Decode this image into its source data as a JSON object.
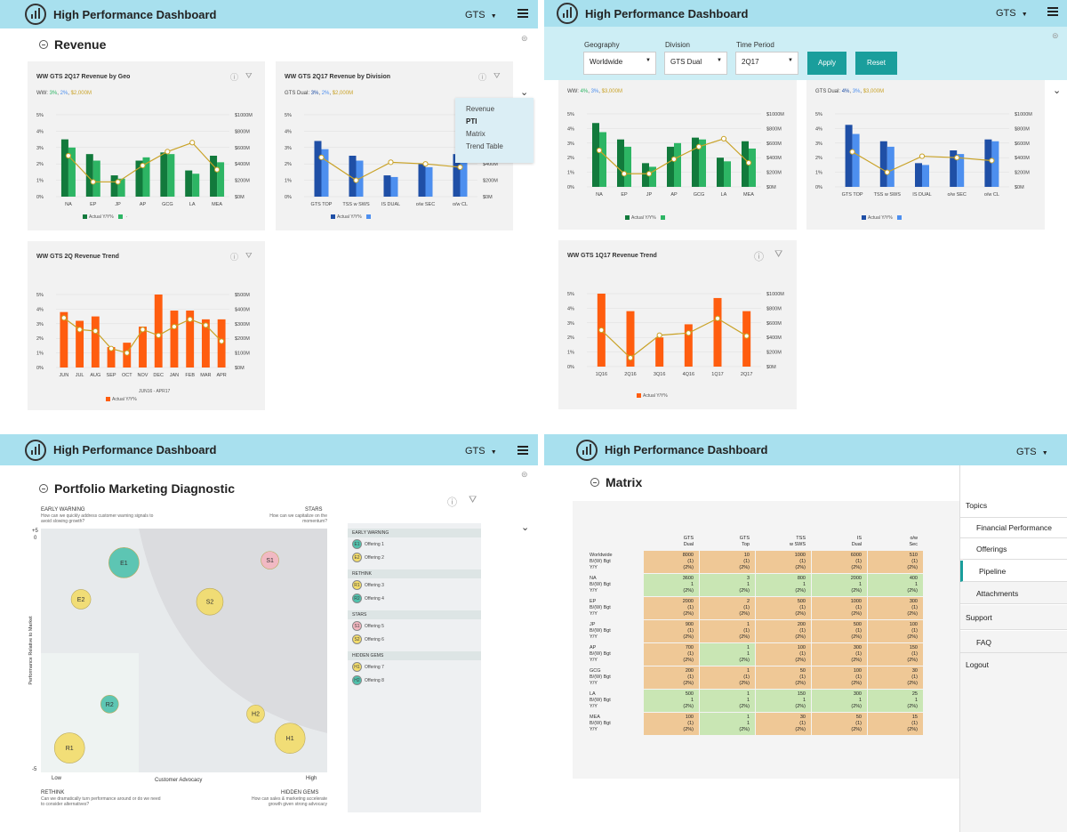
{
  "app": {
    "title": "High Performance Dashboard",
    "org": "GTS"
  },
  "colors": {
    "topbar": "#a8e0ee",
    "green_dark": "#127a3c",
    "green": "#2db564",
    "blue_dark": "#1f4fa6",
    "blue": "#4d8fef",
    "orange": "#ff5d0f",
    "gold_line": "#c9a227",
    "teal_btn": "#1a9e9c"
  },
  "q1": {
    "section": "Revenue",
    "card_geo": {
      "title": "WW GTS 2Q17 Revenue by Geo",
      "sub_prefix": "WW:",
      "sub_a": "3%",
      "sub_b": "2%",
      "sub_c": "$2,000M",
      "legend_actual": "Actual Y/Y%"
    },
    "card_div": {
      "title": "WW GTS 2Q17 Revenue by Division",
      "sub_prefix": "GTS Dual:",
      "sub_a": "3%",
      "sub_b": "2%",
      "sub_c": "$2,000M",
      "legend_actual": "Actual Y/Y%"
    },
    "card_trend": {
      "title": "WW GTS 2Q Revenue Trend",
      "legend_actual": "Actual Y/Y%",
      "note": "JUN16 - APR17"
    },
    "menu": [
      "Revenue",
      "PTI",
      "Matrix",
      "Trend Table"
    ]
  },
  "q2": {
    "filters": {
      "geo_label": "Geography",
      "geo_value": "Worldwide",
      "div_label": "Division",
      "div_value": "GTS Dual",
      "time_label": "Time Period",
      "time_value": "2Q17",
      "apply": "Apply",
      "reset": "Reset"
    },
    "sub_geo": {
      "prefix": "WW:",
      "a": "4%",
      "b": "3%",
      "c": "$3,000M"
    },
    "sub_div": {
      "prefix": "GTS Dual:",
      "a": "4%",
      "b": "3%",
      "c": "$3,000M"
    },
    "card_trend": {
      "title": "WW GTS 1Q17 Revenue Trend",
      "legend_actual": "Actual Y/Y%"
    }
  },
  "q3": {
    "section": "Portfolio Marketing Diagnostic",
    "early_warning": "EARLY WARNING",
    "early_warning_q": "How can we quickly address customer warning signals to avoid slowing growth?",
    "stars": "STARS",
    "stars_q": "How can we capitalize on the momentum?",
    "rethink": "RETHINK",
    "rethink_q": "Can we dramatically turn performance around or do we need to consider alternatives?",
    "hidden_gems": "HIDDEN GEMS",
    "hidden_gems_q": "How can sales & marketing accelerate growth given strong advocacy",
    "y_axis": "Performance Relative to Market",
    "x_axis": "Customer Advocacy",
    "x_low": "Low",
    "x_high": "High",
    "y_top": "+5",
    "y_zero": "0",
    "y_bottom": "-5",
    "list": [
      {
        "group": "EARLY WARNING",
        "items": [
          {
            "code": "E1",
            "name": "Offering 1"
          },
          {
            "code": "E2",
            "name": "Offering 2"
          }
        ]
      },
      {
        "group": "RETHINK",
        "items": [
          {
            "code": "R1",
            "name": "Offering 3"
          },
          {
            "code": "R2",
            "name": "Offering 4"
          }
        ]
      },
      {
        "group": "STARS",
        "items": [
          {
            "code": "S1",
            "name": "Offering 5"
          },
          {
            "code": "S2",
            "name": "Offering 6"
          }
        ]
      },
      {
        "group": "HIDDEN GEMS",
        "items": [
          {
            "code": "H1",
            "name": "Offering 7"
          },
          {
            "code": "H2",
            "name": "Offering 8"
          }
        ]
      }
    ]
  },
  "q4": {
    "section": "Matrix",
    "sidebar": {
      "topics": "Topics",
      "financial": "Financial Performance",
      "offerings": "Offerings",
      "pipeline": "Pipeline",
      "attachments": "Attachments",
      "support": "Support",
      "faq": "FAQ",
      "logout": "Logout"
    },
    "columns": [
      [
        "GTS",
        "Dual"
      ],
      [
        "GTS",
        "Top"
      ],
      [
        "TSS",
        "w SWS"
      ],
      [
        "IS",
        "Dual"
      ],
      [
        "o/w",
        "Sec"
      ]
    ],
    "rows": [
      {
        "label": [
          "Worldwide",
          "B/(W) Bgt",
          "Y/Y"
        ],
        "cells": [
          [
            "8000",
            "(1)",
            "(2%)"
          ],
          [
            "10",
            "(1)",
            "(2%)"
          ],
          [
            "1000",
            "(1)",
            "(2%)"
          ],
          [
            "6000",
            "(1)",
            "(2%)"
          ],
          [
            "510",
            "(1)",
            "(2%)"
          ]
        ],
        "status": [
          "o",
          "o",
          "o",
          "o",
          "o"
        ]
      },
      {
        "label": [
          "NA",
          "B/(W) Bgt",
          "Y/Y"
        ],
        "cells": [
          [
            "3600",
            "1",
            "(2%)"
          ],
          [
            "3",
            "1",
            "(2%)"
          ],
          [
            "800",
            "1",
            "(2%)"
          ],
          [
            "2000",
            "1",
            "(2%)"
          ],
          [
            "400",
            "1",
            "(2%)"
          ]
        ],
        "status": [
          "g",
          "g",
          "g",
          "g",
          "g"
        ]
      },
      {
        "label": [
          "EP",
          "B/(W) Bgt",
          "Y/Y"
        ],
        "cells": [
          [
            "2000",
            "(1)",
            "(2%)"
          ],
          [
            "2",
            "(1)",
            "(2%)"
          ],
          [
            "500",
            "(1)",
            "(2%)"
          ],
          [
            "1000",
            "(1)",
            "(2%)"
          ],
          [
            "300",
            "(1)",
            "(2%)"
          ]
        ],
        "status": [
          "o",
          "o",
          "o",
          "o",
          "o"
        ]
      },
      {
        "label": [
          "JP",
          "B/(W) Bgt",
          "Y/Y"
        ],
        "cells": [
          [
            "900",
            "(1)",
            "(2%)"
          ],
          [
            "1",
            "(1)",
            "(2%)"
          ],
          [
            "200",
            "(1)",
            "(2%)"
          ],
          [
            "500",
            "(1)",
            "(2%)"
          ],
          [
            "100",
            "(1)",
            "(2%)"
          ]
        ],
        "status": [
          "o",
          "o",
          "o",
          "o",
          "o"
        ]
      },
      {
        "label": [
          "AP",
          "B/(W) Bgt",
          "Y/Y"
        ],
        "cells": [
          [
            "700",
            "(1)",
            "(2%)"
          ],
          [
            "1",
            "1",
            "(2%)"
          ],
          [
            "100",
            "(1)",
            "(2%)"
          ],
          [
            "300",
            "(1)",
            "(2%)"
          ],
          [
            "150",
            "(1)",
            "(2%)"
          ]
        ],
        "status": [
          "o",
          "g",
          "o",
          "o",
          "o"
        ]
      },
      {
        "label": [
          "GCG",
          "B/(W) Bgt",
          "Y/Y"
        ],
        "cells": [
          [
            "200",
            "(1)",
            "(2%)"
          ],
          [
            "1",
            "(1)",
            "(2%)"
          ],
          [
            "50",
            "(1)",
            "(2%)"
          ],
          [
            "100",
            "(1)",
            "(2%)"
          ],
          [
            "30",
            "(1)",
            "(2%)"
          ]
        ],
        "status": [
          "o",
          "o",
          "o",
          "o",
          "o"
        ]
      },
      {
        "label": [
          "LA",
          "B/(W) Bgt",
          "Y/Y"
        ],
        "cells": [
          [
            "500",
            "1",
            "(2%)"
          ],
          [
            "1",
            "1",
            "(2%)"
          ],
          [
            "150",
            "1",
            "(2%)"
          ],
          [
            "300",
            "1",
            "(2%)"
          ],
          [
            "25",
            "1",
            "(2%)"
          ]
        ],
        "status": [
          "g",
          "g",
          "g",
          "g",
          "g"
        ]
      },
      {
        "label": [
          "MEA",
          "B/(W) Bgt",
          "Y/Y"
        ],
        "cells": [
          [
            "100",
            "(1)",
            "(2%)"
          ],
          [
            "1",
            "1",
            "(2%)"
          ],
          [
            "30",
            "(1)",
            "(2%)"
          ],
          [
            "50",
            "(1)",
            "(2%)"
          ],
          [
            "15",
            "(1)",
            "(2%)"
          ]
        ],
        "status": [
          "o",
          "g",
          "o",
          "o",
          "o"
        ]
      }
    ]
  },
  "chart_data": [
    {
      "type": "bar",
      "title": "WW GTS 2Q17 Revenue by Geo",
      "categories": [
        "NA",
        "EP",
        "JP",
        "AP",
        "GCG",
        "LA",
        "MEA"
      ],
      "yleft_ticks": [
        "0%",
        "1%",
        "2%",
        "3%",
        "4%",
        "5%"
      ],
      "yright_ticks": [
        "$0M",
        "$200M",
        "$400M",
        "$600M",
        "$800M",
        "$1000M"
      ],
      "series": [
        {
          "name": "Actual Y/Y%",
          "values": [
            3.5,
            2.6,
            1.3,
            2.2,
            2.7,
            1.6,
            2.5
          ]
        },
        {
          "values": [
            3.0,
            2.2,
            1.1,
            2.4,
            2.6,
            1.4,
            2.1
          ]
        }
      ],
      "line": [
        500,
        180,
        180,
        380,
        550,
        660,
        330
      ]
    },
    {
      "type": "bar",
      "title": "WW GTS 2Q17 Revenue by Division",
      "categories": [
        "GTS TOP",
        "TSS w SWS",
        "IS DUAL",
        "o/w SEC",
        "o/w CL"
      ],
      "yleft_ticks": [
        "0%",
        "1%",
        "2%",
        "3%",
        "4%",
        "5%"
      ],
      "yright_ticks": [
        "$0M",
        "$200M",
        "$400M",
        "$600M",
        "$800M",
        "$1000M"
      ],
      "series": [
        {
          "name": "Actual Y/Y%",
          "values": [
            3.4,
            2.5,
            1.3,
            2.0,
            2.6
          ]
        },
        {
          "values": [
            2.9,
            2.2,
            1.2,
            1.8,
            2.5
          ]
        }
      ],
      "line": [
        480,
        200,
        420,
        400,
        360
      ]
    },
    {
      "type": "bar",
      "title": "WW GTS 2Q Revenue Trend",
      "categories": [
        "JUN",
        "JUL",
        "AUG",
        "SEP",
        "OCT",
        "NOV",
        "DEC",
        "JAN",
        "FEB",
        "MAR",
        "APR"
      ],
      "yleft_ticks": [
        "0%",
        "1%",
        "2%",
        "3%",
        "4%",
        "5%"
      ],
      "yright_ticks": [
        "$0M",
        "$100M",
        "$200M",
        "$300M",
        "$400M",
        "$500M"
      ],
      "series": [
        {
          "name": "Actual Y/Y%",
          "values": [
            3.8,
            3.2,
            3.5,
            1.4,
            1.7,
            2.8,
            5.1,
            3.9,
            3.9,
            3.3,
            3.3
          ]
        }
      ],
      "line": [
        340,
        260,
        250,
        130,
        100,
        260,
        220,
        280,
        330,
        290,
        180
      ]
    },
    {
      "type": "bar",
      "title": "WW GTS 1Q17 Revenue Trend",
      "categories": [
        "1Q16",
        "2Q16",
        "3Q16",
        "4Q16",
        "1Q17",
        "2Q17"
      ],
      "yleft_ticks": [
        "0%",
        "1%",
        "2%",
        "3%",
        "4%",
        "5%"
      ],
      "yright_ticks": [
        "$0M",
        "$200M",
        "$400M",
        "$600M",
        "$800M",
        "$1000M"
      ],
      "series": [
        {
          "name": "Actual Y/Y%",
          "values": [
            5.2,
            3.8,
            2.0,
            2.9,
            4.7,
            3.8
          ]
        }
      ],
      "line": [
        500,
        120,
        430,
        460,
        660,
        420
      ]
    },
    {
      "type": "scatter",
      "title": "Portfolio Marketing Diagnostic",
      "xlabel": "Customer Advocacy",
      "ylabel": "Performance Relative to Market",
      "points": [
        {
          "label": "E1",
          "x": 0.29,
          "y": 0.86,
          "r": 17
        },
        {
          "label": "E2",
          "x": 0.14,
          "y": 0.71,
          "r": 11
        },
        {
          "label": "S1",
          "x": 0.8,
          "y": 0.87,
          "r": 10
        },
        {
          "label": "S2",
          "x": 0.59,
          "y": 0.7,
          "r": 15
        },
        {
          "label": "R2",
          "x": 0.24,
          "y": 0.28,
          "r": 10
        },
        {
          "label": "H2",
          "x": 0.75,
          "y": 0.24,
          "r": 10
        },
        {
          "label": "H1",
          "x": 0.87,
          "y": 0.14,
          "r": 17
        },
        {
          "label": "R1",
          "x": 0.1,
          "y": 0.1,
          "r": 17
        }
      ]
    }
  ]
}
